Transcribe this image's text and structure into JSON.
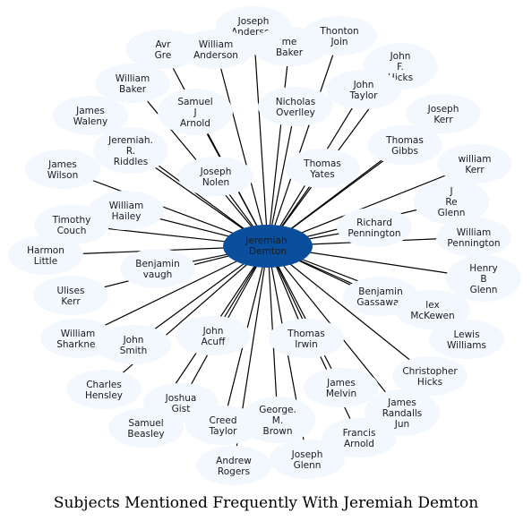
{
  "caption": "Subjects Mentioned Frequently With Jeremiah Demton",
  "center": {
    "label": [
      "Jeremiah",
      "Demton"
    ],
    "color": "#0b4f9c"
  },
  "bubble_color": "#f3f8fe",
  "nodes": [
    {
      "id": "joseph-anderson-top",
      "label": [
        "Joseph",
        "Anderson"
      ]
    },
    {
      "id": "avr-gre",
      "label": [
        "Avr",
        "Gre"
      ]
    },
    {
      "id": "william-anderson",
      "label": [
        "William",
        "Anderson"
      ]
    },
    {
      "id": "baker-partial",
      "label": [
        "me",
        "Baker"
      ]
    },
    {
      "id": "thonton-join",
      "label": [
        "Thonton",
        "Join"
      ]
    },
    {
      "id": "john-f-hicks",
      "label": [
        "John",
        "F.",
        "Hicks"
      ]
    },
    {
      "id": "william-baker",
      "label": [
        "William",
        "Baker"
      ]
    },
    {
      "id": "samuel-j-arnold",
      "label": [
        "Samuel",
        "J",
        "Arnold"
      ]
    },
    {
      "id": "nicholas-overlley",
      "label": [
        "Nicholas",
        "Overlley"
      ]
    },
    {
      "id": "john-taylor",
      "label": [
        "John",
        "Taylor"
      ]
    },
    {
      "id": "joseph-kerr",
      "label": [
        "Joseph",
        "Kerr"
      ]
    },
    {
      "id": "james-waleny",
      "label": [
        "James",
        "Waleny"
      ]
    },
    {
      "id": "jeremiah-r-riddles",
      "label": [
        "Jeremiah.",
        "R.",
        "Riddles"
      ]
    },
    {
      "id": "thomas-gibbs",
      "label": [
        "Thomas",
        "Gibbs"
      ]
    },
    {
      "id": "james-wilson",
      "label": [
        "James",
        "Wilson"
      ]
    },
    {
      "id": "joseph-nolen",
      "label": [
        "Joseph",
        "Nolen"
      ]
    },
    {
      "id": "thomas-yates",
      "label": [
        "Thomas",
        "Yates"
      ]
    },
    {
      "id": "william-kerr",
      "label": [
        "william",
        "Kerr"
      ]
    },
    {
      "id": "j-re-glenn",
      "label": [
        "J",
        "Re",
        "Glenn"
      ]
    },
    {
      "id": "william-hailey",
      "label": [
        "William",
        "Hailey"
      ]
    },
    {
      "id": "timothy-couch",
      "label": [
        "Timothy",
        "Couch"
      ]
    },
    {
      "id": "richard-pennington",
      "label": [
        "Richard",
        "Pennington"
      ]
    },
    {
      "id": "william-pennington",
      "label": [
        "William",
        "Pennington"
      ]
    },
    {
      "id": "harmon-little",
      "label": [
        "Harmon",
        "Little"
      ]
    },
    {
      "id": "benjamin-vaugh",
      "label": [
        "Benjamin",
        "vaugh"
      ]
    },
    {
      "id": "henry-b-glenn",
      "label": [
        "Henry",
        "B",
        "Glenn"
      ]
    },
    {
      "id": "ulises-kerr",
      "label": [
        "Ulises",
        "Kerr"
      ]
    },
    {
      "id": "benjamin-gassaway",
      "label": [
        "Benjamin",
        "Gassaway"
      ]
    },
    {
      "id": "alex-mckewen",
      "label": [
        "lex",
        "McKewen"
      ]
    },
    {
      "id": "william-sharkner",
      "label": [
        "William",
        "Sharkner"
      ]
    },
    {
      "id": "john-smith",
      "label": [
        "John",
        "Smith"
      ]
    },
    {
      "id": "john-acuff",
      "label": [
        "John",
        "Acuff"
      ]
    },
    {
      "id": "thomas-irwin",
      "label": [
        "Thomas",
        "Irwin"
      ]
    },
    {
      "id": "lewis-williams",
      "label": [
        "Lewis",
        "Williams"
      ]
    },
    {
      "id": "charles-hensley",
      "label": [
        "Charles",
        "Hensley"
      ]
    },
    {
      "id": "christopher-hicks",
      "label": [
        "Christopher",
        "Hicks"
      ]
    },
    {
      "id": "james-melvin",
      "label": [
        "James",
        "Melvin"
      ]
    },
    {
      "id": "joshua-gist",
      "label": [
        "Joshua",
        "Gist"
      ]
    },
    {
      "id": "james-randalls-jun",
      "label": [
        "James",
        "Randalls",
        "Jun"
      ]
    },
    {
      "id": "samuel-beasley",
      "label": [
        "Samuel",
        "Beasley"
      ]
    },
    {
      "id": "creed-taylor",
      "label": [
        "Creed",
        "Taylor"
      ]
    },
    {
      "id": "george-m-brown",
      "label": [
        "George.",
        "M.",
        "Brown"
      ]
    },
    {
      "id": "francis-arnold",
      "label": [
        "Francis",
        "Arnold"
      ]
    },
    {
      "id": "andrew-rogers",
      "label": [
        "Andrew",
        "Rogers"
      ]
    },
    {
      "id": "joseph-glenn",
      "label": [
        "Joseph",
        "Glenn"
      ]
    }
  ]
}
